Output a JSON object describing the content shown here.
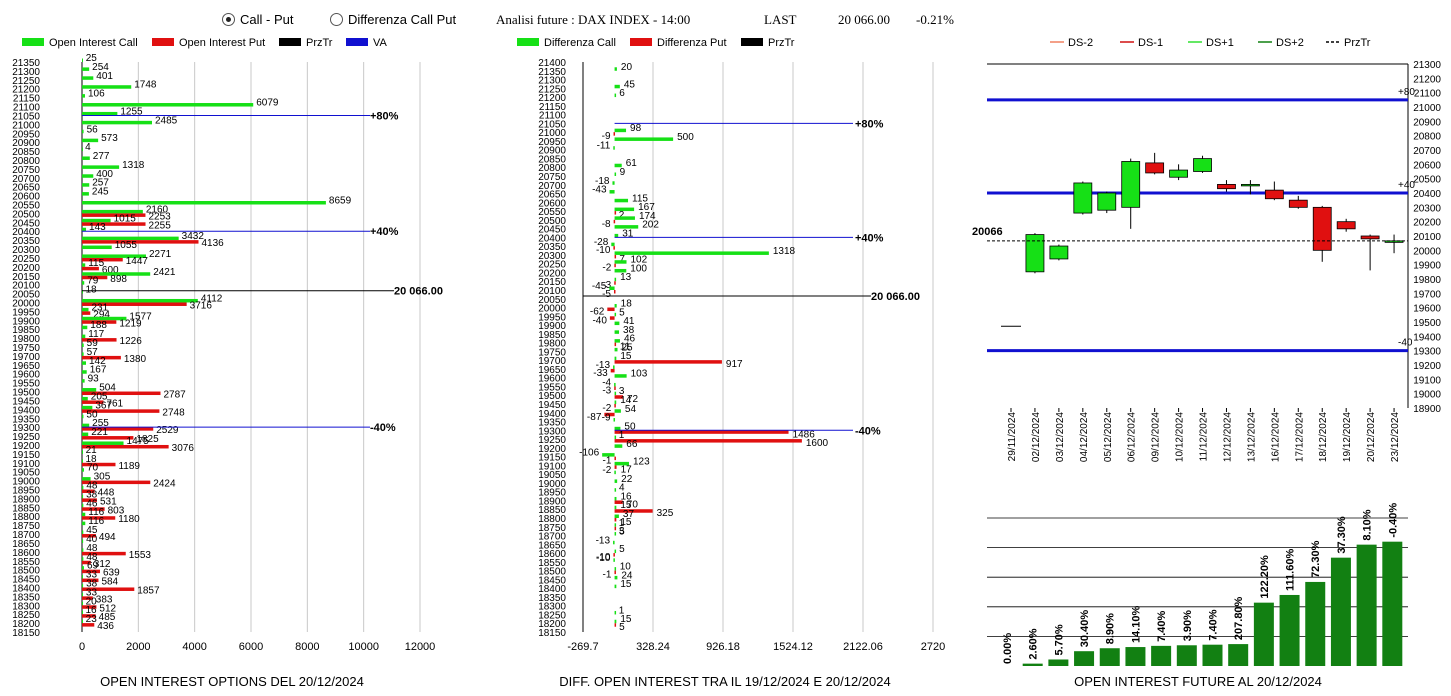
{
  "header": {
    "radio_call_put": "Call - Put",
    "radio_diff": "Differenza Call Put",
    "analysis_title": "Analisi future : DAX INDEX - 14:00",
    "last_label": "LAST",
    "last_value": "20 066.00",
    "last_change": "-0.21%"
  },
  "colors": {
    "green": "#16e016",
    "red": "#e01010",
    "black": "#000000",
    "blue": "#1010d0",
    "dark_green": "#128012",
    "grid": "#c8c8c8"
  },
  "chart_data": [
    {
      "type": "bar",
      "orientation": "horizontal",
      "title": "OPEN INTEREST OPTIONS DEL 20/12/2024",
      "legend": [
        "Open Interest Call",
        "Open Interest Put",
        "PrzTr",
        "VA"
      ],
      "strikes": [
        21350,
        21300,
        21250,
        21200,
        21150,
        21100,
        21050,
        21000,
        20950,
        20900,
        20850,
        20800,
        20750,
        20700,
        20650,
        20600,
        20550,
        20500,
        20450,
        20400,
        20350,
        20300,
        20250,
        20200,
        20150,
        20100,
        20050,
        20000,
        19950,
        19900,
        19850,
        19800,
        19750,
        19700,
        19650,
        19600,
        19550,
        19500,
        19450,
        19400,
        19350,
        19300,
        19250,
        19200,
        19150,
        19100,
        19050,
        19000,
        18950,
        18900,
        18850,
        18800,
        18750,
        18700,
        18650,
        18600,
        18550,
        18500,
        18450,
        18400,
        18350,
        18300,
        18250,
        18200,
        18150
      ],
      "call": [
        25,
        254,
        401,
        1748,
        106,
        6079,
        1255,
        2485,
        56,
        573,
        4,
        277,
        1318,
        400,
        257,
        245,
        8659,
        2160,
        1015,
        143,
        3432,
        1055,
        2271,
        115,
        2421,
        79,
        18,
        4112,
        231,
        1577,
        188,
        117,
        59,
        57,
        142,
        167,
        93,
        504,
        205,
        367,
        50,
        255,
        221,
        1475,
        21,
        18,
        70,
        305,
        48,
        38,
        46,
        116,
        116,
        45,
        40,
        48,
        48,
        69,
        33,
        38,
        33,
        20,
        16,
        23,
        0
      ],
      "put": [
        0,
        0,
        0,
        0,
        0,
        0,
        0,
        0,
        0,
        0,
        0,
        0,
        0,
        0,
        0,
        0,
        0,
        2253,
        2255,
        0,
        4136,
        0,
        1447,
        600,
        898,
        0,
        0,
        3716,
        294,
        1219,
        0,
        1226,
        0,
        1380,
        0,
        0,
        0,
        2787,
        761,
        2748,
        0,
        2529,
        1825,
        3076,
        0,
        1189,
        0,
        2424,
        448,
        531,
        803,
        1180,
        0,
        494,
        0,
        1553,
        312,
        639,
        584,
        1857,
        383,
        512,
        485,
        436,
        0
      ],
      "xticks": [
        0,
        2000,
        4000,
        6000,
        8000,
        10000,
        12000
      ],
      "xlim": [
        0,
        12000
      ],
      "price_last": "20 066.00",
      "va_levels": [
        {
          "label": "+80%",
          "strike": 21050
        },
        {
          "label": "+40%",
          "strike": 20400
        },
        {
          "label": "-40%",
          "strike": 19300
        }
      ]
    },
    {
      "type": "bar",
      "orientation": "horizontal",
      "title": "DIFF. OPEN INTEREST TRA IL 19/12/2024 E 20/12/2024",
      "legend": [
        "Differenza Call",
        "Differenza Put",
        "PrzTr"
      ],
      "strikes": [
        21400,
        21350,
        21300,
        21250,
        21200,
        21150,
        21100,
        21050,
        21000,
        20950,
        20900,
        20850,
        20800,
        20750,
        20700,
        20650,
        20600,
        20550,
        20500,
        20450,
        20400,
        20350,
        20300,
        20250,
        20200,
        20150,
        20100,
        20050,
        20000,
        19950,
        19900,
        19850,
        19800,
        19750,
        19700,
        19650,
        19600,
        19550,
        19500,
        19450,
        19400,
        19350,
        19300,
        19250,
        19200,
        19150,
        19100,
        19050,
        19000,
        18950,
        18900,
        18850,
        18800,
        18750,
        18700,
        18650,
        18600,
        18550,
        18500,
        18450,
        18400,
        18350,
        18300,
        18250,
        18200,
        18150
      ],
      "diff_call": [
        0,
        20,
        0,
        45,
        6,
        0,
        0,
        0,
        98,
        500,
        -11,
        0,
        61,
        9,
        -18,
        -43,
        115,
        167,
        174,
        202,
        31,
        -28,
        1318,
        102,
        100,
        13,
        -45,
        0,
        18,
        5,
        41,
        38,
        46,
        25,
        15,
        -13,
        103,
        -4,
        3,
        14,
        54,
        -9,
        50,
        1,
        66,
        -106,
        123,
        -2,
        22,
        4,
        16,
        15,
        37,
        1,
        5,
        -13,
        5,
        -10,
        10,
        24,
        15,
        0,
        0,
        1,
        15,
        0
      ],
      "diff_put": [
        0,
        0,
        0,
        0,
        0,
        0,
        0,
        0,
        -9,
        0,
        0,
        0,
        0,
        0,
        0,
        0,
        0,
        2,
        -8,
        0,
        0,
        -10,
        7,
        -2,
        0,
        -3,
        -5,
        0,
        -62,
        -40,
        0,
        0,
        11,
        0,
        917,
        -33,
        0,
        -3,
        72,
        -2,
        -87,
        0,
        1486,
        1600,
        0,
        -1,
        17,
        0,
        0,
        0,
        70,
        325,
        15,
        3,
        0,
        0,
        -10,
        0,
        -1,
        0,
        0,
        0,
        0,
        0,
        5,
        0
      ],
      "xticks": [
        -269.7,
        328.24,
        926.18,
        1524.12,
        2122.06,
        2720
      ],
      "xlim": [
        -269.7,
        2720
      ],
      "price_last": "20 066.00",
      "va_levels": [
        {
          "label": "+80%",
          "strike": 21050
        },
        {
          "label": "+40%",
          "strike": 20400
        },
        {
          "label": "-40%",
          "strike": 19300
        }
      ]
    },
    {
      "type": "candlestick",
      "legend": [
        "DS-2",
        "DS-1",
        "DS+1",
        "DS+2",
        "PrzTr"
      ],
      "dates": [
        "29/11/2024",
        "02/12/2024",
        "03/12/2024",
        "04/12/2024",
        "05/12/2024",
        "06/12/2024",
        "09/12/2024",
        "10/12/2024",
        "11/12/2024",
        "12/12/2024",
        "13/12/2024",
        "16/12/2024",
        "17/12/2024",
        "18/12/2024",
        "19/12/2024",
        "20/12/2024",
        "23/12/2024"
      ],
      "ohlc": [
        [
          19470,
          19470,
          19470,
          19470
        ],
        [
          19850,
          20120,
          19840,
          20110
        ],
        [
          19940,
          20040,
          19930,
          20030
        ],
        [
          20260,
          20480,
          20250,
          20470
        ],
        [
          20280,
          20410,
          20260,
          20400
        ],
        [
          20300,
          20640,
          20150,
          20620
        ],
        [
          20610,
          20680,
          20530,
          20540
        ],
        [
          20510,
          20600,
          20490,
          20560
        ],
        [
          20550,
          20660,
          20540,
          20640
        ],
        [
          20460,
          20490,
          20410,
          20430
        ],
        [
          20450,
          20490,
          20390,
          20460
        ],
        [
          20420,
          20480,
          20350,
          20360
        ],
        [
          20350,
          20380,
          20290,
          20300
        ],
        [
          20300,
          20310,
          19920,
          20000
        ],
        [
          20200,
          20220,
          20130,
          20150
        ],
        [
          20100,
          20110,
          19860,
          20080
        ],
        [
          20066,
          20110,
          19980,
          20066
        ]
      ],
      "ylim": [
        18900,
        21300
      ],
      "yticks": [
        18900,
        19000,
        19100,
        19200,
        19300,
        19400,
        19500,
        19600,
        19700,
        19800,
        19900,
        20000,
        20100,
        20200,
        20300,
        20400,
        20500,
        20600,
        20700,
        20800,
        20900,
        21000,
        21100,
        21200,
        21300
      ],
      "levels": [
        {
          "label": "+80",
          "value": 21050
        },
        {
          "label": "+40",
          "value": 20400
        },
        {
          "label": "-40",
          "value": 19300
        }
      ],
      "last_label": "20066",
      "last_value": 20066
    },
    {
      "type": "bar",
      "title": "OPEN INTEREST FUTURE AL 20/12/2024",
      "labels": [
        "0.00%",
        "2.60%",
        "5.70%",
        "30.40%",
        "8.90%",
        "14.10%",
        "7.40%",
        "3.90%",
        "7.40%",
        "207.80%",
        "122.20%",
        "111.60%",
        "72.30%",
        "37.30%",
        "8.10%",
        "-0.40%"
      ],
      "values": [
        0,
        4,
        11,
        25,
        30,
        32,
        34,
        35,
        36,
        37,
        107,
        120,
        142,
        183,
        205,
        210
      ],
      "ylim": [
        0,
        250
      ]
    }
  ]
}
